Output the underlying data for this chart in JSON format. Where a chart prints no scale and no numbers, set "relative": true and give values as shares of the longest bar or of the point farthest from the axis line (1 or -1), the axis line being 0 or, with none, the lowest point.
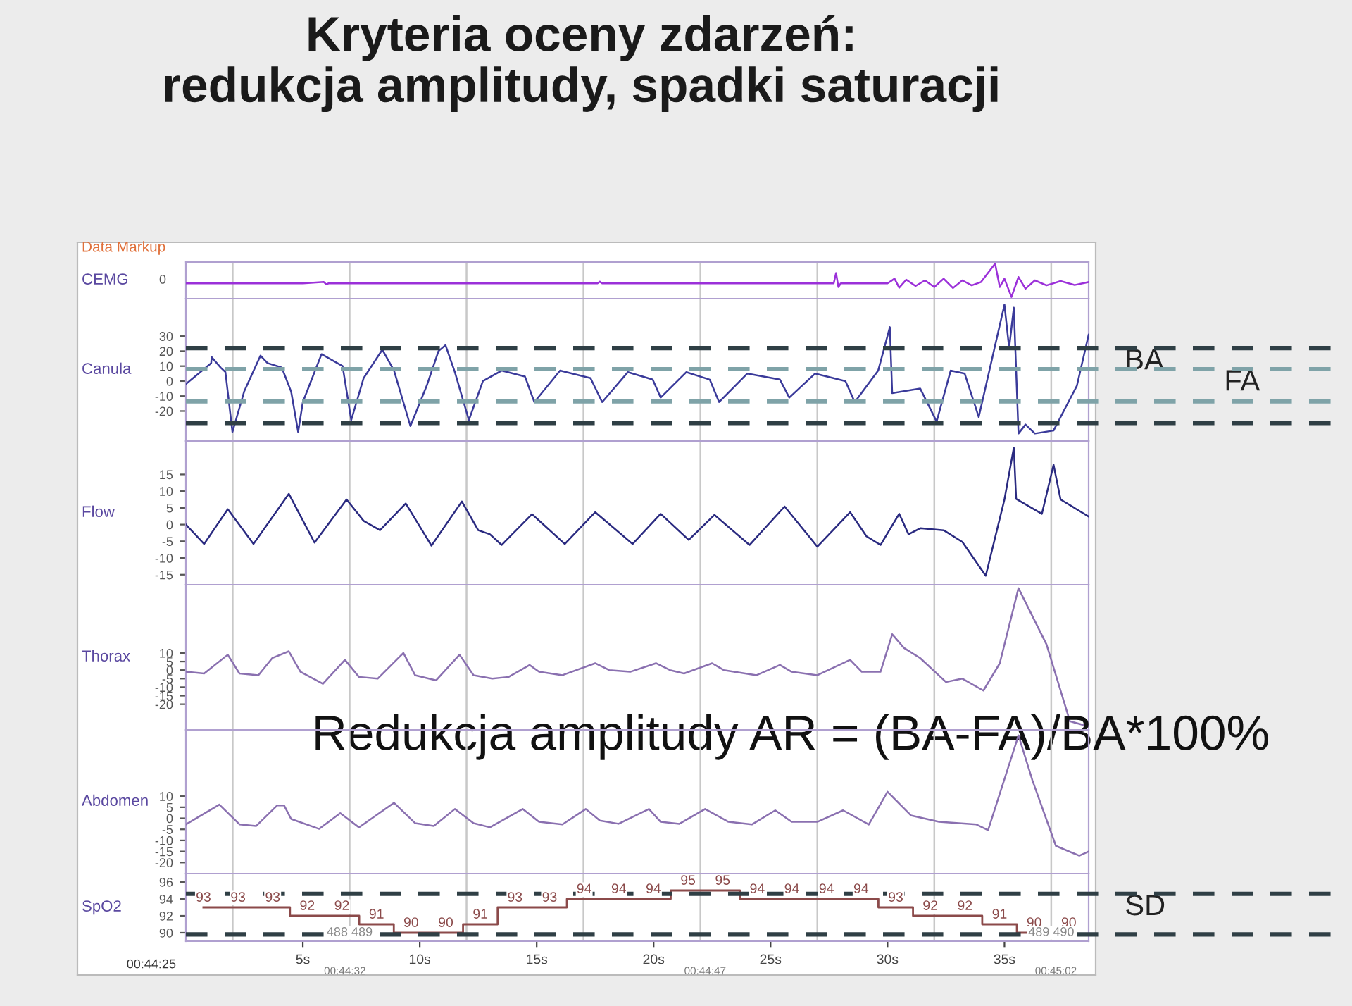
{
  "chart_data": [
    {
      "type": "line",
      "title": "Kryteria oceny zdarzeń:\nredukcja amplitudy, spadki saturacji",
      "ylabel": "CEMG",
      "relative": true,
      "xlim": [
        0,
        38.6
      ],
      "tick_labels": false,
      "x": [
        0,
        5,
        5.9,
        6,
        6.1,
        10.8,
        14,
        17.6,
        17.7,
        17.8,
        24,
        27.7,
        27.8,
        27.9,
        28.0,
        30.0,
        30.3,
        30.5,
        30.8,
        31.2,
        31.6,
        32.0,
        32.4,
        32.8,
        33.2,
        33.6,
        34.0,
        34.6,
        34.8,
        35.0,
        35.3,
        35.6,
        35.9,
        36.3,
        36.8,
        37.4,
        38.0,
        38.6
      ],
      "series": [
        {
          "color": "#9b30d9",
          "values": [
            0.41,
            0.41,
            0.45,
            0.38,
            0.41,
            0.41,
            0.41,
            0.41,
            0.46,
            0.41,
            0.41,
            0.41,
            0.72,
            0.3,
            0.41,
            0.41,
            0.55,
            0.28,
            0.52,
            0.33,
            0.5,
            0.3,
            0.55,
            0.27,
            0.5,
            0.35,
            0.45,
            1.0,
            0.3,
            0.55,
            0.0,
            0.6,
            0.25,
            0.5,
            0.35,
            0.48,
            0.36,
            0.45
          ]
        }
      ],
      "ref_lines": [
        {
          "axis": "x",
          "value": 2,
          "color": "#c8c8c8"
        },
        {
          "axis": "x",
          "value": 7,
          "color": "#c8c8c8"
        },
        {
          "axis": "x",
          "value": 12,
          "color": "#c8c8c8"
        },
        {
          "axis": "x",
          "value": 17,
          "color": "#c8c8c8"
        },
        {
          "axis": "x",
          "value": 22,
          "color": "#c8c8c8"
        },
        {
          "axis": "x",
          "value": 27,
          "color": "#c8c8c8"
        },
        {
          "axis": "x",
          "value": 32,
          "color": "#c8c8c8"
        },
        {
          "axis": "x",
          "value": 37,
          "color": "#c8c8c8"
        }
      ],
      "annotations": [
        "Data Markup",
        "0"
      ]
    },
    {
      "type": "line",
      "ylabel": "Canula",
      "xlim": [
        0,
        38.6
      ],
      "ylim": [
        -40,
        55
      ],
      "yticks": [
        30,
        20,
        10,
        0,
        -10,
        -20
      ],
      "tick_labels": "y",
      "x": [
        0,
        1.08,
        1.1,
        1.49,
        1.69,
        1.99,
        2.49,
        3.19,
        3.49,
        4.1,
        4.5,
        4.8,
        5.0,
        5.8,
        6.7,
        7.07,
        7.6,
        8.4,
        8.9,
        9.6,
        10.3,
        10.8,
        11.1,
        11.5,
        12.1,
        12.7,
        13.5,
        14.5,
        14.9,
        16.0,
        17.3,
        17.8,
        18.9,
        19.96,
        20.3,
        21.4,
        22.4,
        22.8,
        24.0,
        25.4,
        25.8,
        26.9,
        28.2,
        28.6,
        29.6,
        30.1,
        30.2,
        31.4,
        32.1,
        32.7,
        33.3,
        33.9,
        35.0,
        35.2,
        35.4,
        35.6,
        35.9,
        36.3,
        37.1,
        38.1,
        38.6
      ],
      "series": [
        {
          "color": "#3a3a9a",
          "values": [
            -2,
            12,
            16,
            9,
            6,
            -34,
            -7,
            17,
            12,
            9,
            -7,
            -34,
            -14,
            18,
            10,
            -26,
            2,
            21,
            7,
            -30,
            -3,
            20,
            24,
            6,
            -26,
            0,
            7,
            3,
            -14,
            7,
            2,
            -14,
            6,
            1,
            -11,
            6,
            1,
            -14,
            5,
            1,
            -11,
            5,
            0,
            -14,
            7,
            36,
            -8,
            -5,
            -27,
            7,
            5,
            -24,
            51,
            22,
            49,
            -35,
            -29,
            -35,
            -33,
            -3,
            31
          ]
        }
      ],
      "ref_lines": [
        {
          "axis": "x",
          "value": 2,
          "color": "#c8c8c8"
        },
        {
          "axis": "x",
          "value": 7,
          "color": "#c8c8c8"
        },
        {
          "axis": "x",
          "value": 12,
          "color": "#c8c8c8"
        },
        {
          "axis": "x",
          "value": 17,
          "color": "#c8c8c8"
        },
        {
          "axis": "x",
          "value": 22,
          "color": "#c8c8c8"
        },
        {
          "axis": "x",
          "value": 27,
          "color": "#c8c8c8"
        },
        {
          "axis": "x",
          "value": 32,
          "color": "#c8c8c8"
        },
        {
          "axis": "x",
          "value": 37,
          "color": "#c8c8c8"
        },
        {
          "axis": "y",
          "value": 22,
          "label": "BA",
          "color": "#2f3f45",
          "line_style": "dashed"
        },
        {
          "axis": "y",
          "value": -28,
          "color": "#2f3f45",
          "line_style": "dashed"
        },
        {
          "axis": "y",
          "value": 8,
          "label": "FA",
          "color": "#7fa3a8",
          "line_style": "dashed"
        },
        {
          "axis": "y",
          "value": -13.5,
          "color": "#7fa3a8",
          "line_style": "dashed"
        }
      ]
    },
    {
      "type": "line",
      "ylabel": "Flow",
      "xlim": [
        0,
        38.6
      ],
      "ylim": [
        -18,
        25
      ],
      "yticks": [
        15,
        10,
        5,
        0,
        -5,
        -10,
        -15
      ],
      "tick_labels": "y",
      "x": [
        0,
        0.78,
        1.79,
        2.89,
        4.4,
        5.5,
        6.87,
        7.6,
        8.3,
        9.4,
        10.5,
        11.8,
        12.5,
        13.0,
        13.5,
        14.8,
        16.2,
        17.5,
        19.1,
        20.3,
        21.5,
        22.6,
        24.1,
        25.6,
        27.0,
        28.4,
        29.1,
        29.7,
        30.5,
        30.9,
        31.4,
        32.4,
        33.2,
        34.2,
        35.0,
        35.4,
        35.5,
        36.6,
        37.1,
        37.4,
        38.6
      ],
      "series": [
        {
          "color": "#2a2a80",
          "values": [
            0,
            -5.8,
            4.6,
            -5.8,
            9.2,
            -5.4,
            7.5,
            1.1,
            -1.7,
            6.3,
            -6.3,
            6.9,
            -1.7,
            -2.9,
            -6.1,
            3.1,
            -5.8,
            3.7,
            -5.8,
            3.2,
            -4.6,
            2.9,
            -6.1,
            5.4,
            -6.6,
            3.7,
            -3.5,
            -6.1,
            3.2,
            -2.9,
            -1.1,
            -1.7,
            -5.2,
            -15.3,
            7.5,
            23,
            7.7,
            3.2,
            17.9,
            7.5,
            2.4
          ]
        }
      ],
      "ref_lines": [
        {
          "axis": "x",
          "value": 2,
          "color": "#c8c8c8"
        },
        {
          "axis": "x",
          "value": 7,
          "color": "#c8c8c8"
        },
        {
          "axis": "x",
          "value": 12,
          "color": "#c8c8c8"
        },
        {
          "axis": "x",
          "value": 17,
          "color": "#c8c8c8"
        },
        {
          "axis": "x",
          "value": 22,
          "color": "#c8c8c8"
        },
        {
          "axis": "x",
          "value": 27,
          "color": "#c8c8c8"
        },
        {
          "axis": "x",
          "value": 32,
          "color": "#c8c8c8"
        },
        {
          "axis": "x",
          "value": 37,
          "color": "#c8c8c8"
        }
      ]
    },
    {
      "type": "line",
      "ylabel": "Thorax",
      "xlim": [
        0,
        38.6
      ],
      "ylim": [
        -35,
        50
      ],
      "yticks": [
        10,
        5,
        0,
        -5,
        -10,
        -15,
        -20
      ],
      "tick_labels": "y",
      "x": [
        0,
        0.78,
        1.79,
        2.29,
        3.1,
        3.69,
        4.4,
        4.9,
        5.86,
        6.8,
        7.4,
        8.2,
        9.3,
        9.8,
        10.7,
        11.7,
        12.3,
        13.1,
        13.8,
        14.7,
        15.1,
        16.1,
        17.5,
        18.1,
        19.0,
        20.1,
        20.7,
        21.3,
        22.5,
        23.0,
        24.4,
        25.4,
        25.9,
        27.0,
        28.4,
        28.9,
        29.7,
        30.2,
        30.7,
        31.4,
        32.5,
        33.2,
        34.1,
        34.8,
        35.6,
        36.8,
        37.8,
        38.6
      ],
      "series": [
        {
          "color": "#8a70b0",
          "values": [
            -1,
            -2,
            9,
            -2,
            -3,
            7,
            11,
            -1,
            -8,
            6,
            -4,
            -5,
            10,
            -3,
            -6,
            9,
            -3,
            -5,
            -4,
            3,
            -1,
            -3,
            4,
            0,
            -1,
            4,
            0,
            -2,
            4,
            0,
            -3,
            3,
            -1,
            -3,
            6,
            -1,
            -1,
            21,
            13,
            7,
            -7,
            -5,
            -12,
            4,
            48,
            15,
            -30,
            -33
          ]
        }
      ],
      "ref_lines": [
        {
          "axis": "x",
          "value": 2,
          "color": "#c8c8c8"
        },
        {
          "axis": "x",
          "value": 7,
          "color": "#c8c8c8"
        },
        {
          "axis": "x",
          "value": 12,
          "color": "#c8c8c8"
        },
        {
          "axis": "x",
          "value": 17,
          "color": "#c8c8c8"
        },
        {
          "axis": "x",
          "value": 22,
          "color": "#c8c8c8"
        },
        {
          "axis": "x",
          "value": 27,
          "color": "#c8c8c8"
        },
        {
          "axis": "x",
          "value": 32,
          "color": "#c8c8c8"
        },
        {
          "axis": "x",
          "value": 37,
          "color": "#c8c8c8"
        }
      ],
      "annotations": [
        "Redukcja amplitudy AR = (BA-FA)/BA*100%"
      ]
    },
    {
      "type": "line",
      "ylabel": "Abdomen",
      "xlim": [
        0,
        38.6
      ],
      "ylim": [
        -25,
        40
      ],
      "yticks": [
        10,
        5,
        0,
        -5,
        -10,
        -15,
        -20
      ],
      "tick_labels": "y",
      "x": [
        0,
        1.43,
        2.3,
        3.0,
        3.9,
        4.2,
        4.5,
        5.7,
        6.6,
        7.4,
        8.9,
        9.8,
        10.6,
        11.5,
        12.3,
        13.0,
        14.4,
        15.1,
        16.1,
        17.1,
        17.7,
        18.5,
        19.8,
        20.3,
        21.1,
        22.2,
        23.2,
        24.2,
        25.2,
        25.9,
        27.0,
        28.1,
        29.2,
        30.0,
        31.0,
        32.2,
        33.8,
        34.3,
        35.6,
        36.2,
        37.2,
        38.2,
        38.6
      ],
      "series": [
        {
          "color": "#8a70b0",
          "values": [
            -2.8,
            6.2,
            -2.8,
            -3.5,
            5.8,
            5.8,
            -0.3,
            -4.8,
            2.3,
            -4.1,
            7.0,
            -2.2,
            -3.5,
            4.2,
            -2.2,
            -4.1,
            4.2,
            -1.6,
            -2.8,
            4.2,
            -1.0,
            -2.5,
            4.2,
            -1.6,
            -2.5,
            4.2,
            -1.6,
            -2.8,
            3.6,
            -1.6,
            -1.6,
            3.6,
            -2.8,
            12,
            1.3,
            -1.6,
            -2.8,
            -5.4,
            37.5,
            17,
            -12.5,
            -16.9,
            -15
          ]
        }
      ],
      "ref_lines": [
        {
          "axis": "x",
          "value": 2,
          "color": "#c8c8c8"
        },
        {
          "axis": "x",
          "value": 7,
          "color": "#c8c8c8"
        },
        {
          "axis": "x",
          "value": 12,
          "color": "#c8c8c8"
        },
        {
          "axis": "x",
          "value": 17,
          "color": "#c8c8c8"
        },
        {
          "axis": "x",
          "value": 22,
          "color": "#c8c8c8"
        },
        {
          "axis": "x",
          "value": 27,
          "color": "#c8c8c8"
        },
        {
          "axis": "x",
          "value": 32,
          "color": "#c8c8c8"
        },
        {
          "axis": "x",
          "value": 37,
          "color": "#c8c8c8"
        }
      ]
    },
    {
      "type": "step",
      "ylabel": "SpO2",
      "xlim": [
        0,
        38.6
      ],
      "ylim": [
        89,
        97
      ],
      "yticks": [
        96,
        94,
        92,
        90
      ],
      "data_labels": true,
      "xticks": [
        {
          "value": 5,
          "label": "5s"
        },
        {
          "value": 10,
          "label": "10s"
        },
        {
          "value": 15,
          "label": "15s"
        },
        {
          "value": 20,
          "label": "20s"
        },
        {
          "value": 25,
          "label": "25s"
        },
        {
          "value": 30,
          "label": "30s"
        },
        {
          "value": 35,
          "label": "35s"
        }
      ],
      "x": [
        0.75,
        2.23,
        3.71,
        5.19,
        6.67,
        8.15,
        9.63,
        11.11,
        12.59,
        14.07,
        15.55,
        17.03,
        18.51,
        19.99,
        21.47,
        22.95,
        24.43,
        25.91,
        27.39,
        28.87,
        30.35,
        31.83,
        33.31,
        34.79,
        36.27,
        37.75
      ],
      "series": [
        {
          "color": "#8b4a4a",
          "values": [
            93,
            93,
            93,
            92,
            92,
            91,
            90,
            90,
            91,
            93,
            93,
            94,
            94,
            94,
            95,
            95,
            94,
            94,
            94,
            94,
            93,
            92,
            92,
            91,
            90,
            90
          ]
        }
      ],
      "ref_lines": [
        {
          "axis": "x",
          "value": 2,
          "color": "#c8c8c8"
        },
        {
          "axis": "x",
          "value": 7,
          "color": "#c8c8c8"
        },
        {
          "axis": "x",
          "value": 12,
          "color": "#c8c8c8"
        },
        {
          "axis": "x",
          "value": 17,
          "color": "#c8c8c8"
        },
        {
          "axis": "x",
          "value": 22,
          "color": "#c8c8c8"
        },
        {
          "axis": "x",
          "value": 27,
          "color": "#c8c8c8"
        },
        {
          "axis": "x",
          "value": 32,
          "color": "#c8c8c8"
        },
        {
          "axis": "x",
          "value": 37,
          "color": "#c8c8c8"
        },
        {
          "axis": "y",
          "value": 94.6,
          "label": "SD",
          "color": "#2f3f45",
          "line_style": "dashed"
        },
        {
          "axis": "y",
          "value": 89.8,
          "color": "#2f3f45",
          "line_style": "dashed"
        }
      ],
      "annotations": [
        {
          "text": "488 489",
          "x": 7,
          "y": 89.3
        },
        {
          "text": "489 490",
          "x": 37,
          "y": 89.3
        },
        "00:44:32",
        "00:44:47",
        "00:45:02",
        "00:44:25"
      ]
    }
  ]
}
